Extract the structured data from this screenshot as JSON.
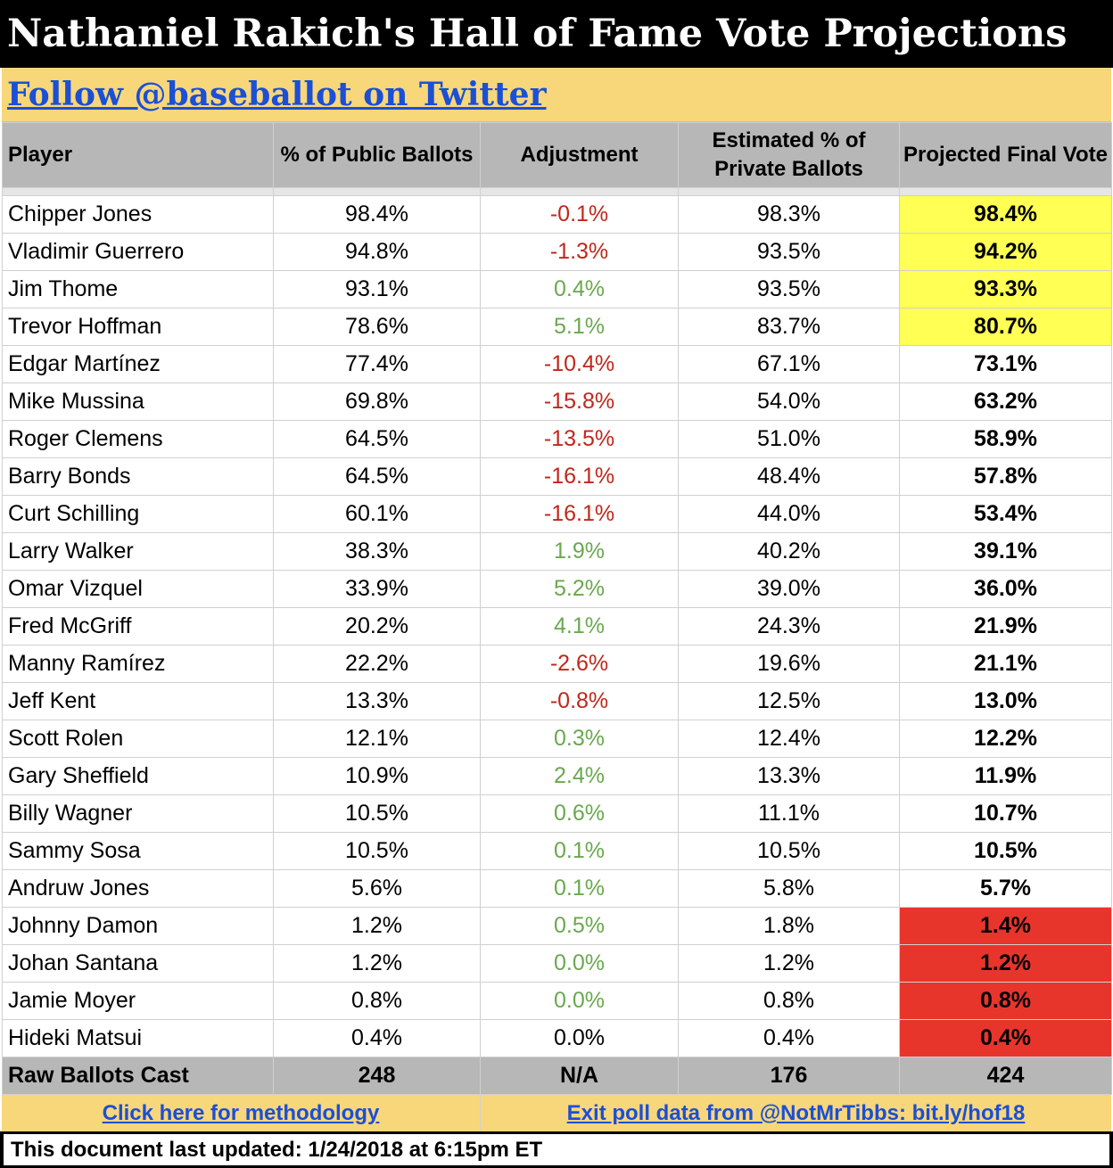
{
  "title": "Nathaniel Rakich's Hall of Fame Vote Projections",
  "follow_link": "Follow @baseballot on Twitter",
  "headers": {
    "player": "Player",
    "public": "% of Public Ballots",
    "adjustment": "Adjustment",
    "private": "Estimated % of Private Ballots",
    "final": "Projected Final Vote"
  },
  "rows": [
    {
      "player": "Chipper Jones",
      "public": "98.4%",
      "adjustment": "-0.1%",
      "private": "98.3%",
      "final": "98.4%"
    },
    {
      "player": "Vladimir Guerrero",
      "public": "94.8%",
      "adjustment": "-1.3%",
      "private": "93.5%",
      "final": "94.2%"
    },
    {
      "player": "Jim Thome",
      "public": "93.1%",
      "adjustment": "0.4%",
      "private": "93.5%",
      "final": "93.3%"
    },
    {
      "player": "Trevor Hoffman",
      "public": "78.6%",
      "adjustment": "5.1%",
      "private": "83.7%",
      "final": "80.7%"
    },
    {
      "player": "Edgar Martínez",
      "public": "77.4%",
      "adjustment": "-10.4%",
      "private": "67.1%",
      "final": "73.1%"
    },
    {
      "player": "Mike Mussina",
      "public": "69.8%",
      "adjustment": "-15.8%",
      "private": "54.0%",
      "final": "63.2%"
    },
    {
      "player": "Roger Clemens",
      "public": "64.5%",
      "adjustment": "-13.5%",
      "private": "51.0%",
      "final": "58.9%"
    },
    {
      "player": "Barry Bonds",
      "public": "64.5%",
      "adjustment": "-16.1%",
      "private": "48.4%",
      "final": "57.8%"
    },
    {
      "player": "Curt Schilling",
      "public": "60.1%",
      "adjustment": "-16.1%",
      "private": "44.0%",
      "final": "53.4%"
    },
    {
      "player": "Larry Walker",
      "public": "38.3%",
      "adjustment": "1.9%",
      "private": "40.2%",
      "final": "39.1%"
    },
    {
      "player": "Omar Vizquel",
      "public": "33.9%",
      "adjustment": "5.2%",
      "private": "39.0%",
      "final": "36.0%"
    },
    {
      "player": "Fred McGriff",
      "public": "20.2%",
      "adjustment": "4.1%",
      "private": "24.3%",
      "final": "21.9%"
    },
    {
      "player": "Manny Ramírez",
      "public": "22.2%",
      "adjustment": "-2.6%",
      "private": "19.6%",
      "final": "21.1%"
    },
    {
      "player": "Jeff Kent",
      "public": "13.3%",
      "adjustment": "-0.8%",
      "private": "12.5%",
      "final": "13.0%"
    },
    {
      "player": "Scott Rolen",
      "public": "12.1%",
      "adjustment": "0.3%",
      "private": "12.4%",
      "final": "12.2%"
    },
    {
      "player": "Gary Sheffield",
      "public": "10.9%",
      "adjustment": "2.4%",
      "private": "13.3%",
      "final": "11.9%"
    },
    {
      "player": "Billy Wagner",
      "public": "10.5%",
      "adjustment": "0.6%",
      "private": "11.1%",
      "final": "10.7%"
    },
    {
      "player": "Sammy Sosa",
      "public": "10.5%",
      "adjustment": "0.1%",
      "private": "10.5%",
      "final": "10.5%"
    },
    {
      "player": "Andruw Jones",
      "public": "5.6%",
      "adjustment": "0.1%",
      "private": "5.8%",
      "final": "5.7%"
    },
    {
      "player": "Johnny Damon",
      "public": "1.2%",
      "adjustment": "0.5%",
      "private": "1.8%",
      "final": "1.4%"
    },
    {
      "player": "Johan Santana",
      "public": "1.2%",
      "adjustment": "0.0%",
      "private": "1.2%",
      "final": "1.2%"
    },
    {
      "player": "Jamie Moyer",
      "public": "0.8%",
      "adjustment": "0.0%",
      "private": "0.8%",
      "final": "0.8%"
    },
    {
      "player": "Hideki Matsui",
      "public": "0.4%",
      "adjustment": "0.0%",
      "private": "0.4%",
      "final": "0.4%"
    }
  ],
  "totals": {
    "label": "Raw Ballots Cast",
    "public": "248",
    "adjustment": "N/A",
    "private": "176",
    "final": "424"
  },
  "links": {
    "methodology": "Click here for methodology",
    "exit_poll": "Exit poll data from @NotMrTibbs: bit.ly/hof18"
  },
  "last_updated": "This document last updated: 1/24/2018 at 6:15pm ET",
  "colors": {
    "title_bg": "#000000",
    "band": "#f8d67a",
    "header_bg": "#b7b7b7",
    "negative": "#c0271b",
    "positive": "#6aa84f",
    "highlight_elected": "#ffff54",
    "highlight_dropped": "#e8352c",
    "link": "#1a4fd6"
  }
}
